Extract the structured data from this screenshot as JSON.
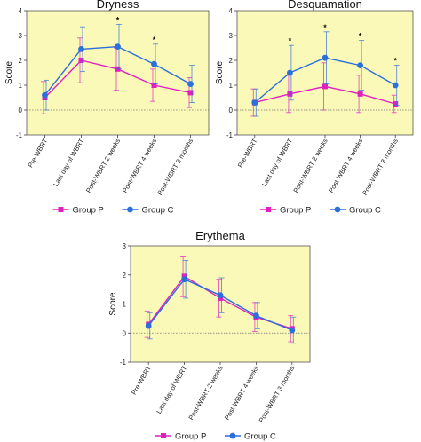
{
  "chart_data": [
    {
      "type": "line",
      "title": "Dryness",
      "ylabel": "Score",
      "ylim": [
        -1,
        4
      ],
      "yticks": [
        -1,
        0,
        1,
        2,
        3,
        4
      ],
      "categories": [
        "Pre-WBRT",
        "Last day of WBRT",
        "Post-WBRT 2 weeks",
        "Post-WBRT 4 weeks",
        "Post-WBRT 3 months"
      ],
      "series": [
        {
          "name": "Group P",
          "color": "#e020c0",
          "marker": "square",
          "values": [
            0.5,
            2.0,
            1.65,
            1.0,
            0.7
          ],
          "err": [
            0.65,
            0.9,
            0.85,
            0.65,
            0.6
          ]
        },
        {
          "name": "Group C",
          "color": "#2a6fdc",
          "marker": "circle",
          "values": [
            0.6,
            2.45,
            2.55,
            1.85,
            1.05
          ],
          "err": [
            0.6,
            0.9,
            0.9,
            0.8,
            0.75
          ]
        }
      ],
      "significance": [
        "",
        "",
        "*",
        "*",
        ""
      ],
      "legend": "bottom",
      "background": "#fbf9b8"
    },
    {
      "type": "line",
      "title": "Desquamation",
      "ylabel": "Score",
      "ylim": [
        -1,
        4
      ],
      "yticks": [
        -1,
        0,
        1,
        2,
        3,
        4
      ],
      "categories": [
        "Pre-WBRT",
        "Last day of WBRT",
        "Post-WBRT 2 weeks",
        "Post-WBRT 4 weeks",
        "Post-WBRT 3 months"
      ],
      "series": [
        {
          "name": "Group P",
          "color": "#e020c0",
          "marker": "square",
          "values": [
            0.3,
            0.65,
            0.95,
            0.65,
            0.25
          ],
          "err": [
            0.55,
            0.75,
            0.95,
            0.75,
            0.35
          ]
        },
        {
          "name": "Group C",
          "color": "#2a6fdc",
          "marker": "circle",
          "values": [
            0.3,
            1.5,
            2.1,
            1.8,
            1.0
          ],
          "err": [
            0.55,
            1.1,
            1.05,
            1.0,
            0.8
          ]
        }
      ],
      "significance": [
        "",
        "*",
        "*",
        "*",
        "*"
      ],
      "legend": "bottom",
      "background": "#fbf9b8"
    },
    {
      "type": "line",
      "title": "Erythema",
      "ylabel": "Score",
      "ylim": [
        -1,
        3
      ],
      "yticks": [
        -1,
        0,
        1,
        2,
        3
      ],
      "categories": [
        "Pre-WBRT",
        "Last day of WBRT",
        "Post-WBRT 2 weeks",
        "Post-WBRT 4 weeks",
        "Post-WBRT 3 months"
      ],
      "series": [
        {
          "name": "Group P",
          "color": "#e020c0",
          "marker": "square",
          "values": [
            0.3,
            1.95,
            1.2,
            0.55,
            0.15
          ],
          "err": [
            0.45,
            0.7,
            0.65,
            0.5,
            0.45
          ]
        },
        {
          "name": "Group C",
          "color": "#2a6fdc",
          "marker": "circle",
          "values": [
            0.25,
            1.85,
            1.3,
            0.6,
            0.1
          ],
          "err": [
            0.45,
            0.65,
            0.6,
            0.45,
            0.45
          ]
        }
      ],
      "significance": [
        "",
        "",
        "",
        "",
        ""
      ],
      "legend": "bottom",
      "background": "#fbf9b8"
    }
  ]
}
